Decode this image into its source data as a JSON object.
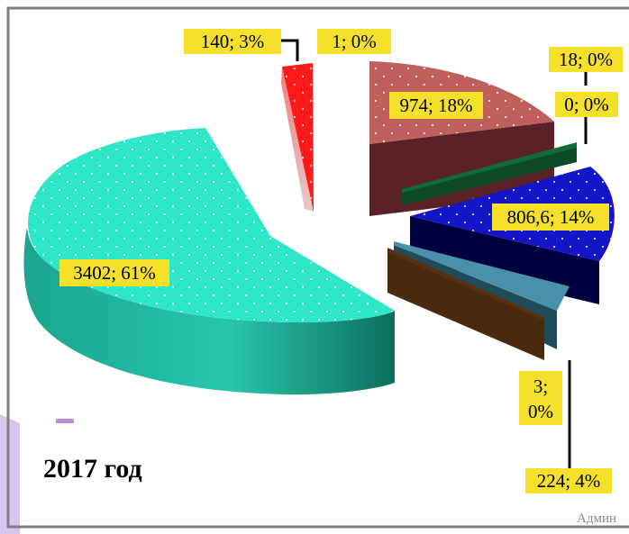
{
  "chart_data": {
    "type": "pie",
    "subtitle": "2017 год",
    "slices": [
      {
        "value": 974,
        "percent": "18%",
        "label": "974; 18%",
        "color": "#c0605a"
      },
      {
        "value": 18,
        "percent": "0%",
        "label": "18; 0%",
        "color": "#cccccc"
      },
      {
        "value": 0,
        "percent": "0%",
        "label": "0; 0%",
        "color": "#0e6b3a"
      },
      {
        "value": 806.6,
        "percent": "14%",
        "label": "806,6; 14%",
        "color": "#1414c8"
      },
      {
        "value": 224,
        "percent": "4%",
        "label": "224; 4%",
        "color": "#4a90a8"
      },
      {
        "value": 3,
        "percent": "0%",
        "label": "3; 0%",
        "color": "#5a3010"
      },
      {
        "value": 3402,
        "percent": "61%",
        "label": "3402; 61%",
        "color": "#2ee6c8"
      },
      {
        "value": 140,
        "percent": "3%",
        "label": "140; 3%",
        "color": "#ff1a1a"
      },
      {
        "value": 1,
        "percent": "0%",
        "label": "1; 0%",
        "color": "#d8d8d8"
      }
    ],
    "label_color": "#f5e02a",
    "legend_color": "#b78fd6"
  },
  "footer_text": "Админ",
  "frame_color": "#7f7f7f",
  "side_accent_color": "#d8c6ee"
}
